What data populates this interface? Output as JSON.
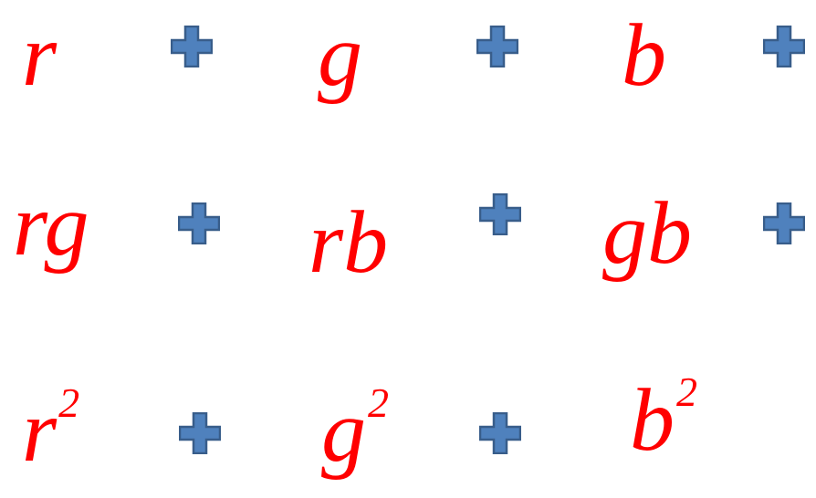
{
  "colors": {
    "term": "#ff0000",
    "plus_fill": "#4f81bd",
    "plus_stroke": "#385d8a"
  },
  "icon": "plus-icon",
  "rows": [
    {
      "terms": [
        {
          "base": "r",
          "exp": ""
        },
        {
          "base": "g",
          "exp": ""
        },
        {
          "base": "b",
          "exp": ""
        }
      ]
    },
    {
      "terms": [
        {
          "base": "rg",
          "exp": ""
        },
        {
          "base": "rb",
          "exp": ""
        },
        {
          "base": "gb",
          "exp": ""
        }
      ]
    },
    {
      "terms": [
        {
          "base": "r",
          "exp": "2"
        },
        {
          "base": "g",
          "exp": "2"
        },
        {
          "base": "b",
          "exp": "2"
        }
      ]
    }
  ]
}
